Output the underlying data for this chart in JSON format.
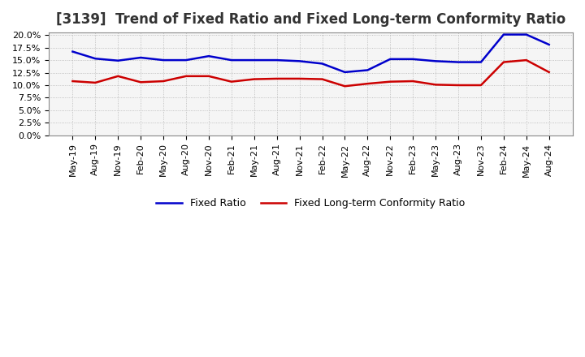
{
  "title": "[3139]  Trend of Fixed Ratio and Fixed Long-term Conformity Ratio",
  "x_labels": [
    "May-19",
    "Aug-19",
    "Nov-19",
    "Feb-20",
    "May-20",
    "Aug-20",
    "Nov-20",
    "Feb-21",
    "May-21",
    "Aug-21",
    "Nov-21",
    "Feb-22",
    "May-22",
    "Aug-22",
    "Nov-22",
    "Feb-23",
    "May-23",
    "Aug-23",
    "Nov-23",
    "Feb-24",
    "May-24",
    "Aug-24"
  ],
  "fixed_ratio": [
    0.167,
    0.153,
    0.149,
    0.155,
    0.15,
    0.15,
    0.158,
    0.15,
    0.15,
    0.15,
    0.148,
    0.143,
    0.126,
    0.13,
    0.152,
    0.152,
    0.148,
    0.146,
    0.146,
    0.201,
    0.201,
    0.181
  ],
  "fixed_lt_ratio": [
    0.108,
    0.105,
    0.118,
    0.106,
    0.108,
    0.118,
    0.118,
    0.107,
    0.112,
    0.113,
    0.113,
    0.112,
    0.098,
    0.103,
    0.107,
    0.108,
    0.101,
    0.1,
    0.1,
    0.146,
    0.15,
    0.126
  ],
  "fixed_ratio_color": "#0000CC",
  "fixed_lt_ratio_color": "#CC0000",
  "ylim": [
    0.0,
    0.2
  ],
  "yticks": [
    0.0,
    0.025,
    0.05,
    0.075,
    0.1,
    0.125,
    0.15,
    0.175,
    0.2
  ],
  "background_color": "#FFFFFF",
  "plot_bg_color": "#F5F5F5",
  "grid_color": "#AAAAAA",
  "title_fontsize": 12,
  "tick_fontsize": 8,
  "legend_labels": [
    "Fixed Ratio",
    "Fixed Long-term Conformity Ratio"
  ]
}
